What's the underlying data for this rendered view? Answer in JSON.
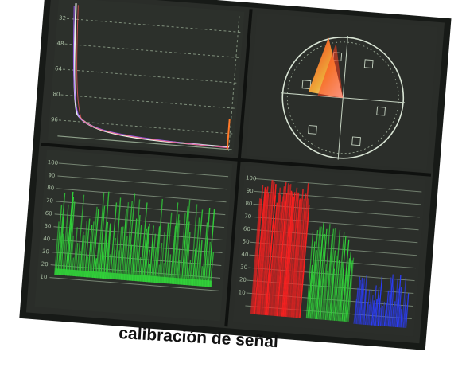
{
  "caption": "calibración de señal",
  "panels": {
    "histogram": {
      "tick_labels": [
        "32",
        "48",
        "64",
        "80",
        "96"
      ]
    },
    "vectorscope": {},
    "luma_waveform": {
      "tick_labels": [
        "100",
        "90",
        "80",
        "70",
        "60",
        "50",
        "40",
        "30",
        "20",
        "10"
      ]
    },
    "rgb_parade": {
      "tick_labels": [
        "100",
        "90",
        "80",
        "70",
        "60",
        "50",
        "40",
        "30",
        "20",
        "10"
      ]
    }
  },
  "colors": {
    "monitor_frame": "#171a17",
    "screen": "#2a2d29",
    "grid": "#8ea08a",
    "trace_green": "#31d43a",
    "trace_red": "#ff2020",
    "trace_blue": "#2b3dff"
  }
}
